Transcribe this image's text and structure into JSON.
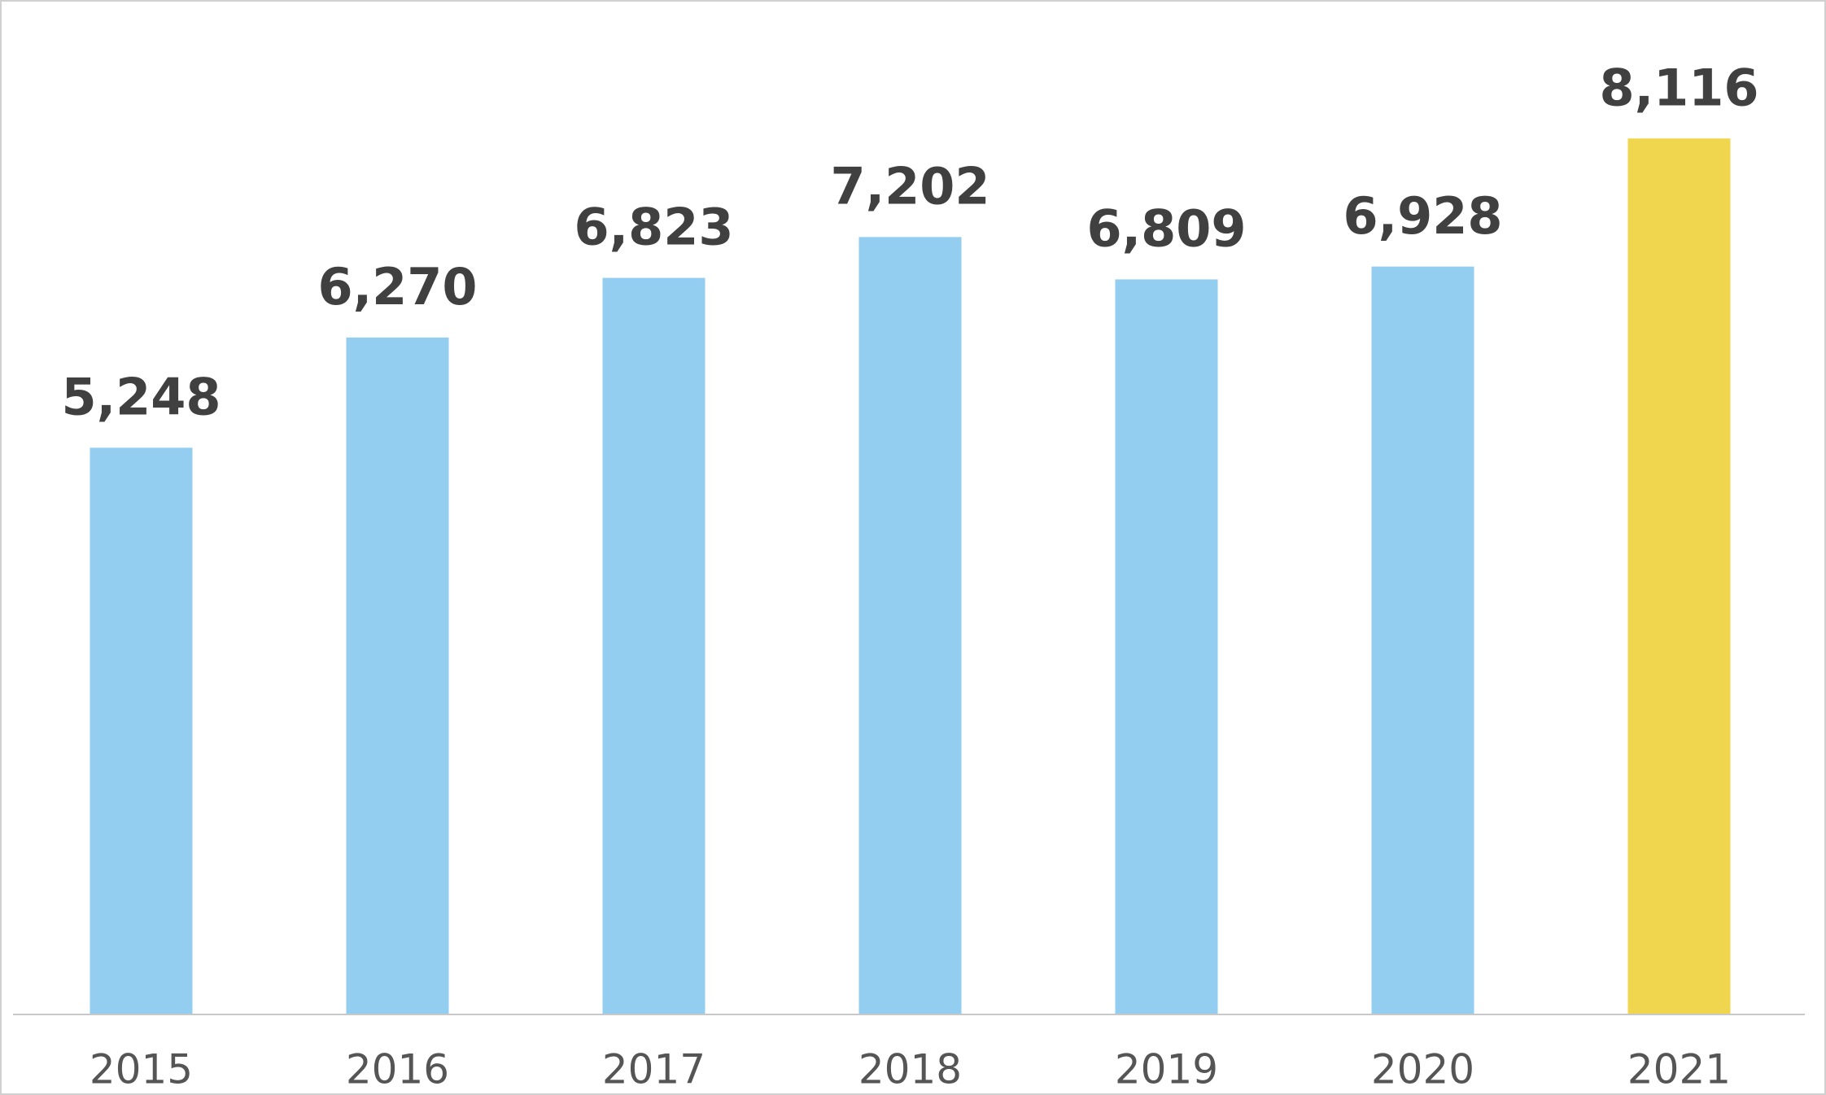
{
  "chart_data": {
    "type": "bar",
    "categories": [
      "2015",
      "2016",
      "2017",
      "2018",
      "2019",
      "2020",
      "2021"
    ],
    "values": [
      5248,
      6270,
      6823,
      7202,
      6809,
      6928,
      8116
    ],
    "value_labels": [
      "5,248",
      "6,270",
      "6,823",
      "7,202",
      "6,809",
      "6,928",
      "8,116"
    ],
    "colors": [
      "#93cdf0",
      "#93cdf0",
      "#93cdf0",
      "#93cdf0",
      "#93cdf0",
      "#93cdf0",
      "#efd64e"
    ],
    "ylim": [
      0,
      9400
    ]
  }
}
